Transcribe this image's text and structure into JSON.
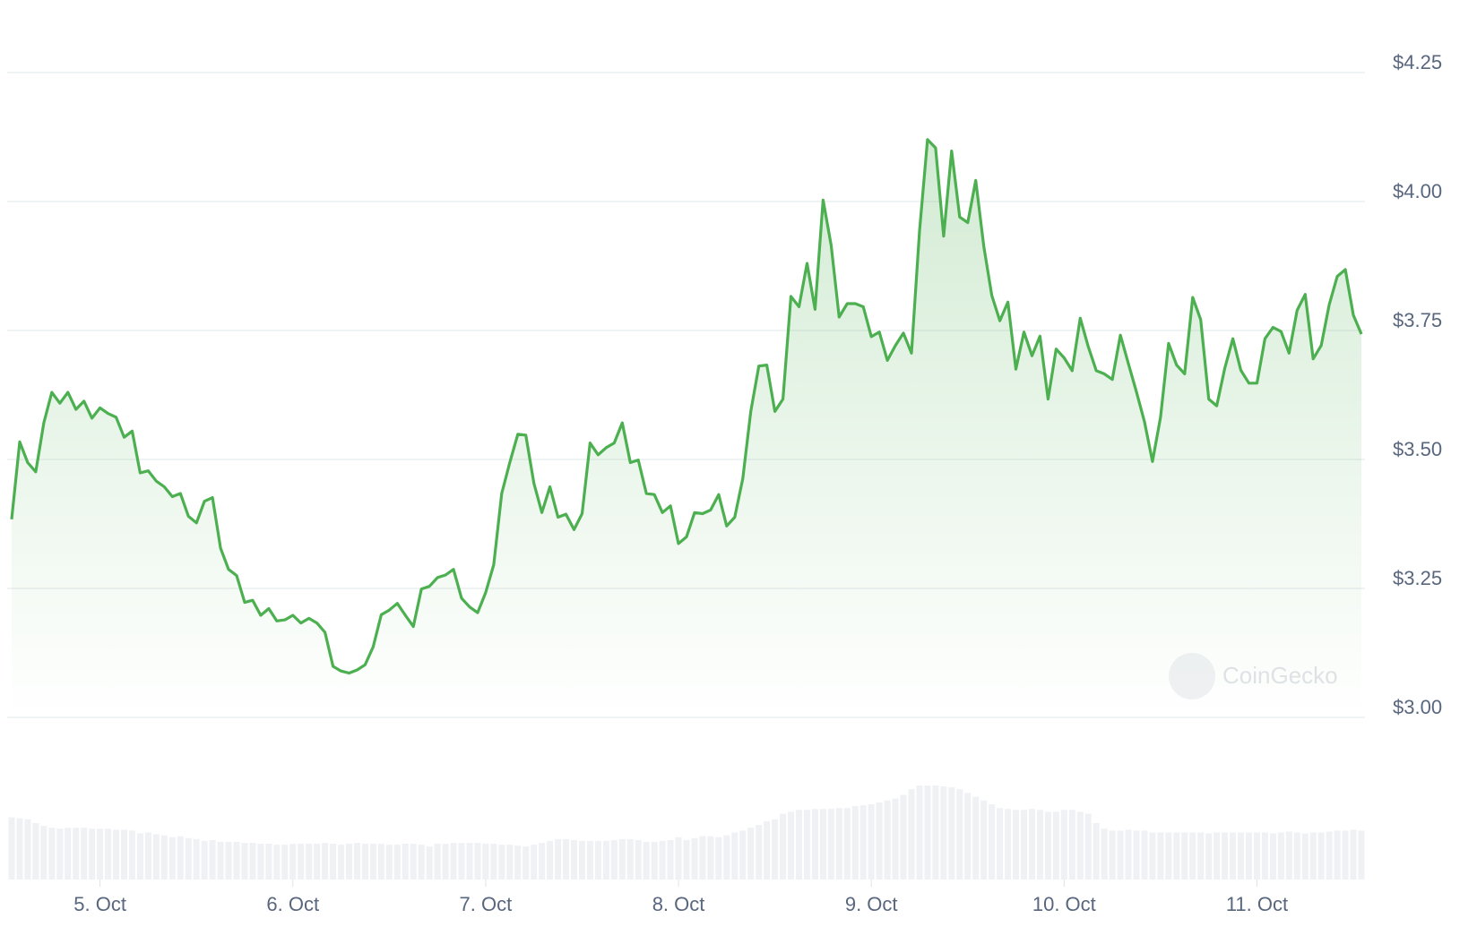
{
  "chart_data": {
    "type": "line",
    "watermark": "CoinGecko",
    "xlim": [
      0,
      168
    ],
    "xticks": [
      {
        "value": 11,
        "label": "5. Oct"
      },
      {
        "value": 35,
        "label": "6. Oct"
      },
      {
        "value": 59,
        "label": "7. Oct"
      },
      {
        "value": 83,
        "label": "8. Oct"
      },
      {
        "value": 107,
        "label": "9. Oct"
      },
      {
        "value": 131,
        "label": "10. Oct"
      },
      {
        "value": 155,
        "label": "11. Oct"
      }
    ],
    "ylim": [
      3.0,
      4.25
    ],
    "yticks": [
      {
        "value": 3.0,
        "label": "$3.00"
      },
      {
        "value": 3.25,
        "label": "$3.25"
      },
      {
        "value": 3.5,
        "label": "$3.50"
      },
      {
        "value": 3.75,
        "label": "$3.75"
      },
      {
        "value": 4.0,
        "label": "$4.00"
      },
      {
        "value": 4.25,
        "label": "$4.25"
      }
    ],
    "grid": true,
    "series": [
      {
        "color": "#4caf50",
        "values": [
          3.384,
          3.534,
          3.494,
          3.476,
          3.571,
          3.63,
          3.609,
          3.63,
          3.597,
          3.613,
          3.58,
          3.6,
          3.589,
          3.582,
          3.543,
          3.555,
          3.474,
          3.478,
          3.458,
          3.447,
          3.428,
          3.434,
          3.39,
          3.377,
          3.419,
          3.426,
          3.328,
          3.287,
          3.275,
          3.223,
          3.227,
          3.198,
          3.211,
          3.187,
          3.189,
          3.198,
          3.183,
          3.192,
          3.183,
          3.165,
          3.099,
          3.09,
          3.086,
          3.092,
          3.102,
          3.137,
          3.199,
          3.208,
          3.221,
          3.198,
          3.176,
          3.249,
          3.254,
          3.271,
          3.276,
          3.287,
          3.231,
          3.214,
          3.203,
          3.242,
          3.296,
          3.434,
          3.494,
          3.549,
          3.547,
          3.454,
          3.397,
          3.447,
          3.388,
          3.394,
          3.364,
          3.395,
          3.532,
          3.509,
          3.523,
          3.532,
          3.571,
          3.494,
          3.499,
          3.434,
          3.432,
          3.397,
          3.41,
          3.337,
          3.35,
          3.397,
          3.395,
          3.402,
          3.432,
          3.371,
          3.388,
          3.463,
          3.593,
          3.681,
          3.683,
          3.593,
          3.617,
          3.816,
          3.796,
          3.88,
          3.791,
          4.003,
          3.915,
          3.776,
          3.802,
          3.802,
          3.796,
          3.738,
          3.747,
          3.692,
          3.721,
          3.745,
          3.706,
          3.943,
          4.12,
          4.104,
          3.933,
          4.098,
          3.97,
          3.959,
          4.041,
          3.913,
          3.818,
          3.769,
          3.805,
          3.675,
          3.747,
          3.701,
          3.739,
          3.617,
          3.714,
          3.697,
          3.672,
          3.774,
          3.719,
          3.672,
          3.666,
          3.655,
          3.741,
          3.686,
          3.631,
          3.573,
          3.496,
          3.582,
          3.725,
          3.683,
          3.666,
          3.814,
          3.771,
          3.617,
          3.604,
          3.677,
          3.734,
          3.673,
          3.648,
          3.648,
          3.734,
          3.756,
          3.748,
          3.706,
          3.789,
          3.82,
          3.695,
          3.721,
          3.8,
          3.855,
          3.868,
          3.78,
          3.743
        ]
      }
    ],
    "volume": {
      "color": "#eff1f4",
      "values": [
        66,
        65,
        64,
        60,
        57,
        55,
        54,
        55,
        55,
        55,
        54,
        54,
        54,
        53,
        53,
        52,
        49,
        50,
        48,
        47,
        45,
        46,
        44,
        43,
        41,
        42,
        40,
        40,
        40,
        39,
        39,
        38,
        38,
        37,
        37,
        38,
        38,
        38,
        38,
        39,
        38,
        37,
        38,
        39,
        38,
        38,
        38,
        37,
        37,
        38,
        38,
        37,
        35,
        38,
        38,
        39,
        39,
        39,
        39,
        38,
        38,
        37,
        37,
        36,
        35,
        37,
        39,
        41,
        43,
        43,
        42,
        41,
        41,
        41,
        41,
        42,
        43,
        43,
        42,
        40,
        40,
        41,
        42,
        45,
        42,
        44,
        46,
        46,
        45,
        47,
        50,
        52,
        55,
        58,
        62,
        64,
        70,
        72,
        74,
        74,
        75,
        75,
        75,
        76,
        76,
        78,
        79,
        80,
        82,
        84,
        86,
        90,
        96,
        100,
        100,
        100,
        99,
        98,
        96,
        92,
        88,
        84,
        80,
        76,
        75,
        74,
        74,
        75,
        74,
        72,
        72,
        74,
        74,
        72,
        70,
        60,
        54,
        52,
        52,
        53,
        52,
        52,
        50,
        50,
        50,
        50,
        50,
        50,
        50,
        49,
        50,
        50,
        50,
        50,
        50,
        50,
        50,
        49,
        50,
        51,
        50,
        49,
        50,
        50,
        51,
        52,
        52,
        53,
        52
      ]
    }
  }
}
